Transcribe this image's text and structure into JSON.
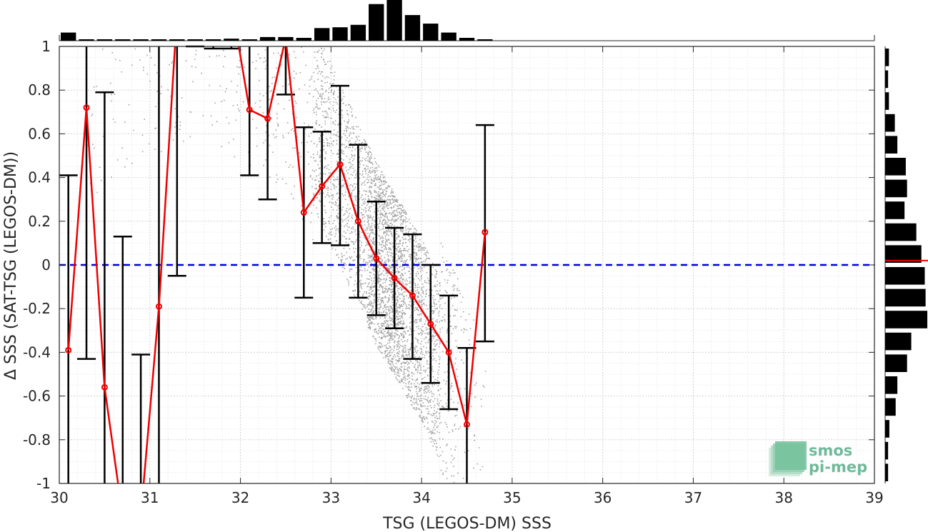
{
  "chart_data": {
    "type": "scatter",
    "title": "",
    "xlabel": "TSG (LEGOS-DM) SSS",
    "ylabel": "Δ SSS (SAT-TSG (LEGOS-DM))",
    "xlim": [
      30,
      39
    ],
    "ylim": [
      -1,
      1
    ],
    "x_ticks": [
      30,
      31,
      32,
      33,
      34,
      35,
      36,
      37,
      38,
      39
    ],
    "y_ticks": [
      -1,
      -0.8,
      -0.6,
      -0.4,
      -0.2,
      0,
      0.2,
      0.4,
      0.6,
      0.8,
      1
    ],
    "y_tick_labels": [
      "-1",
      "-0.8",
      "-0.6",
      "-0.4",
      "-0.2",
      "0",
      "0.2",
      "0.4",
      "0.6",
      "0.8",
      "1"
    ],
    "grid": true,
    "zero_line": {
      "y": 0,
      "color": "#0000dd",
      "style": "dashed"
    },
    "binned_mean": {
      "color": "#ee0000",
      "points": [
        {
          "x": 30.1,
          "mean": -0.39,
          "low": -1.2,
          "high": 0.41
        },
        {
          "x": 30.3,
          "mean": 0.72,
          "low": -0.43,
          "high": 1.2
        },
        {
          "x": 30.5,
          "mean": -0.56,
          "low": -1.2,
          "high": 0.79
        },
        {
          "x": 30.7,
          "mean": -1.15,
          "low": -1.2,
          "high": 0.13
        },
        {
          "x": 30.9,
          "mean": -1.15,
          "low": -1.2,
          "high": -0.41
        },
        {
          "x": 31.1,
          "mean": -0.19,
          "low": -1.2,
          "high": 1.2
        },
        {
          "x": 31.3,
          "mean": 1.15,
          "low": -0.05,
          "high": 1.2
        },
        {
          "x": 31.5,
          "mean": 1.2,
          "low": 1.05,
          "high": 1.2
        },
        {
          "x": 31.7,
          "mean": 1.2,
          "low": 0.99,
          "high": 1.2
        },
        {
          "x": 31.9,
          "mean": 1.2,
          "low": 0.99,
          "high": 1.2
        },
        {
          "x": 32.1,
          "mean": 0.71,
          "low": 0.41,
          "high": 1.2
        },
        {
          "x": 32.3,
          "mean": 0.67,
          "low": 0.3,
          "high": 1.2
        },
        {
          "x": 32.5,
          "mean": 1.04,
          "low": 0.78,
          "high": 1.2
        },
        {
          "x": 32.7,
          "mean": 0.24,
          "low": -0.15,
          "high": 0.63
        },
        {
          "x": 32.9,
          "mean": 0.36,
          "low": 0.1,
          "high": 0.61
        },
        {
          "x": 33.1,
          "mean": 0.46,
          "low": 0.09,
          "high": 0.82
        },
        {
          "x": 33.3,
          "mean": 0.2,
          "low": -0.15,
          "high": 0.55
        },
        {
          "x": 33.5,
          "mean": 0.03,
          "low": -0.23,
          "high": 0.29
        },
        {
          "x": 33.7,
          "mean": -0.06,
          "low": -0.29,
          "high": 0.17
        },
        {
          "x": 33.9,
          "mean": -0.14,
          "low": -0.43,
          "high": 0.14
        },
        {
          "x": 34.1,
          "mean": -0.27,
          "low": -0.54,
          "high": 0.0
        },
        {
          "x": 34.3,
          "mean": -0.4,
          "low": -0.66,
          "high": -0.14
        },
        {
          "x": 34.5,
          "mean": -0.73,
          "low": -1.2,
          "high": -0.38
        },
        {
          "x": 34.7,
          "mean": 0.15,
          "low": -0.35,
          "high": 0.64
        }
      ]
    },
    "top_histogram": {
      "bin_width": 0.2,
      "bins": [
        {
          "x": 30.1,
          "count": 0.2
        },
        {
          "x": 30.3,
          "count": 0.02
        },
        {
          "x": 30.5,
          "count": 0.02
        },
        {
          "x": 30.7,
          "count": 0.02
        },
        {
          "x": 30.9,
          "count": 0.02
        },
        {
          "x": 31.1,
          "count": 0.03
        },
        {
          "x": 31.3,
          "count": 0.03
        },
        {
          "x": 31.5,
          "count": 0.02
        },
        {
          "x": 31.7,
          "count": 0.03
        },
        {
          "x": 31.9,
          "count": 0.05
        },
        {
          "x": 32.1,
          "count": 0.03
        },
        {
          "x": 32.3,
          "count": 0.09
        },
        {
          "x": 32.5,
          "count": 0.09
        },
        {
          "x": 32.7,
          "count": 0.07
        },
        {
          "x": 32.9,
          "count": 0.31
        },
        {
          "x": 33.1,
          "count": 0.33
        },
        {
          "x": 33.3,
          "count": 0.39
        },
        {
          "x": 33.5,
          "count": 0.9
        },
        {
          "x": 33.7,
          "count": 1.0
        },
        {
          "x": 33.9,
          "count": 0.63
        },
        {
          "x": 34.1,
          "count": 0.42
        },
        {
          "x": 34.3,
          "count": 0.2
        },
        {
          "x": 34.5,
          "count": 0.07
        },
        {
          "x": 34.7,
          "count": 0.02
        }
      ]
    },
    "right_histogram": {
      "bin_width": 0.1,
      "median_line": {
        "y": 0.02,
        "color": "#ee0000"
      },
      "bins": [
        {
          "y": 0.95,
          "count": 0.09
        },
        {
          "y": 0.85,
          "count": 0.07
        },
        {
          "y": 0.75,
          "count": 0.09
        },
        {
          "y": 0.65,
          "count": 0.23
        },
        {
          "y": 0.55,
          "count": 0.29
        },
        {
          "y": 0.45,
          "count": 0.49
        },
        {
          "y": 0.35,
          "count": 0.52
        },
        {
          "y": 0.25,
          "count": 0.46
        },
        {
          "y": 0.15,
          "count": 0.74
        },
        {
          "y": 0.05,
          "count": 0.86
        },
        {
          "y": -0.05,
          "count": 0.94
        },
        {
          "y": -0.15,
          "count": 0.96
        },
        {
          "y": -0.25,
          "count": 1.0
        },
        {
          "y": -0.35,
          "count": 0.62
        },
        {
          "y": -0.45,
          "count": 0.52
        },
        {
          "y": -0.55,
          "count": 0.29
        },
        {
          "y": -0.65,
          "count": 0.25
        },
        {
          "y": -0.75,
          "count": 0.1
        },
        {
          "y": -0.85,
          "count": 0.07
        },
        {
          "y": -0.95,
          "count": 0.07
        }
      ]
    },
    "scatter_cloud": {
      "color": "#8c8c8c",
      "trend": [
        {
          "x": 30.3,
          "y": 0.9
        },
        {
          "x": 31.5,
          "y": 1.2
        },
        {
          "x": 32.5,
          "y": 0.95
        },
        {
          "x": 33.0,
          "y": 0.5
        },
        {
          "x": 33.5,
          "y": 0.05
        },
        {
          "x": 34.0,
          "y": -0.3
        },
        {
          "x": 34.5,
          "y": -0.75
        },
        {
          "x": 34.7,
          "y": -1.0
        }
      ]
    }
  },
  "logo": {
    "line1": "smos",
    "line2": "pi-mep",
    "color": "#6fba9a"
  }
}
